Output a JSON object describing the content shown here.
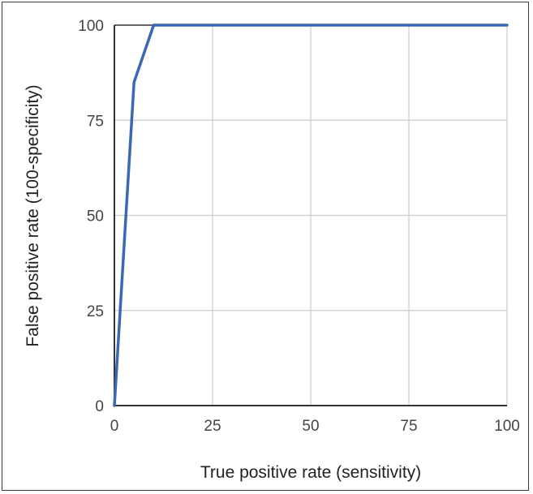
{
  "chart_data": {
    "type": "line",
    "title": "",
    "xlabel": "True positive rate (sensitivity)",
    "ylabel": "False positive rate (100-specificity)",
    "xlim": [
      0,
      100
    ],
    "ylim": [
      0,
      100
    ],
    "x_ticks": [
      "0",
      "25",
      "50",
      "75",
      "100"
    ],
    "y_ticks": [
      "0",
      "25",
      "50",
      "75",
      "100"
    ],
    "grid": true,
    "legend": "none",
    "series": [
      {
        "color": "#3c67b4",
        "points": [
          {
            "x": 0,
            "y": 0
          },
          {
            "x": 5,
            "y": 85
          },
          {
            "x": 10,
            "y": 100
          },
          {
            "x": 100,
            "y": 100
          }
        ]
      }
    ]
  }
}
